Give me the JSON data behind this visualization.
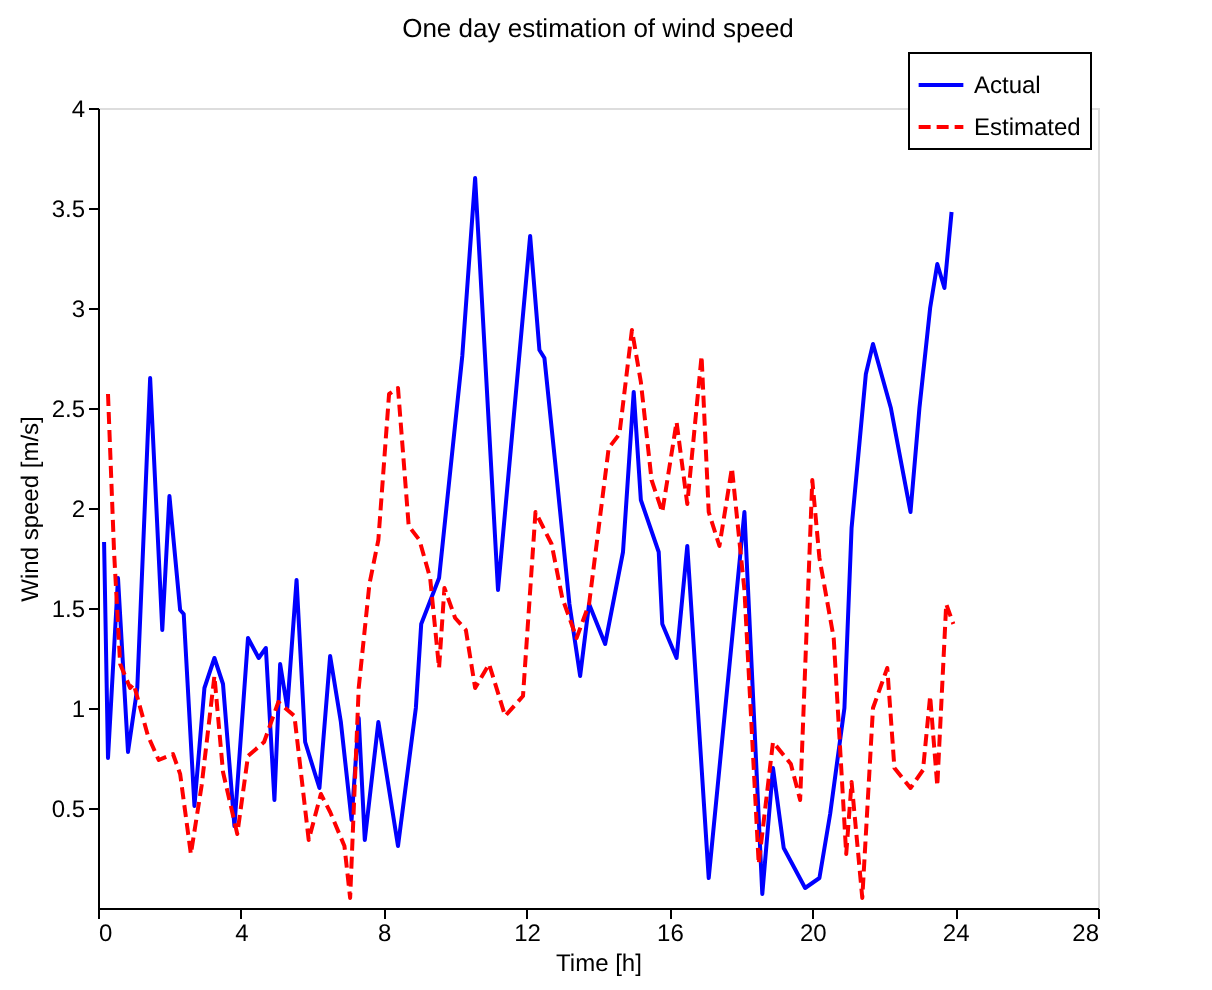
{
  "chart_data": {
    "type": "line",
    "title": "One day estimation of wind speed",
    "xlabel": "Time [h]",
    "ylabel": "Wind speed [m/s]",
    "xlim": [
      0,
      28
    ],
    "xticks": [
      0,
      4,
      8,
      12,
      16,
      20,
      24,
      28
    ],
    "ylim": [
      0,
      4
    ],
    "yticks": [
      0.5,
      1,
      1.5,
      2,
      2.5,
      3,
      3.5,
      4
    ],
    "grid": false,
    "legend": "top right",
    "marker": "none",
    "series": [
      {
        "name": "Actual",
        "color": "#0000ff",
        "line_style": "solid",
        "x": [
          0.17,
          0.28,
          0.56,
          0.84,
          1.1,
          1.46,
          1.8,
          2.0,
          2.3,
          2.4,
          2.7,
          2.98,
          3.26,
          3.5,
          3.82,
          4.2,
          4.5,
          4.7,
          4.94,
          5.1,
          5.3,
          5.56,
          5.8,
          6.2,
          6.5,
          6.8,
          7.1,
          7.3,
          7.47,
          7.85,
          8.4,
          8.9,
          9.05,
          9.55,
          10.2,
          10.56,
          11.2,
          12.1,
          12.36,
          12.5,
          12.8,
          13.2,
          13.5,
          13.75,
          14.2,
          14.7,
          15.0,
          15.2,
          15.7,
          15.8,
          16.2,
          16.5,
          17.1,
          18.1,
          18.6,
          18.9,
          19.2,
          19.5,
          19.8,
          20.2,
          20.5,
          20.9,
          21.1,
          21.5,
          21.7,
          22.2,
          22.75,
          23.0,
          23.3,
          23.5,
          23.7,
          23.9
        ],
        "values": [
          1.83,
          0.75,
          1.65,
          0.78,
          1.1,
          2.65,
          1.39,
          2.06,
          1.49,
          1.47,
          0.51,
          1.1,
          1.25,
          1.12,
          0.41,
          1.35,
          1.25,
          1.3,
          0.54,
          1.22,
          1.0,
          1.64,
          0.83,
          0.6,
          1.26,
          0.93,
          0.44,
          0.95,
          0.34,
          0.93,
          0.31,
          1.0,
          1.42,
          1.65,
          2.76,
          3.65,
          1.59,
          3.36,
          2.79,
          2.75,
          2.23,
          1.52,
          1.16,
          1.52,
          1.32,
          1.78,
          2.58,
          2.04,
          1.78,
          1.42,
          1.25,
          1.81,
          0.15,
          1.98,
          0.07,
          0.7,
          0.3,
          0.2,
          0.1,
          0.15,
          0.47,
          1.0,
          1.9,
          2.67,
          2.82,
          2.5,
          1.98,
          2.5,
          3.0,
          3.22,
          3.1,
          3.48
        ]
      },
      {
        "name": "Estimated",
        "color": "#ff0000",
        "line_style": "dashed",
        "x": [
          0.28,
          0.45,
          0.62,
          0.9,
          1.0,
          1.4,
          1.7,
          2.1,
          2.3,
          2.6,
          2.9,
          3.26,
          3.5,
          3.9,
          4.2,
          4.65,
          5.05,
          5.5,
          5.9,
          6.24,
          6.5,
          6.9,
          7.06,
          7.3,
          7.6,
          7.85,
          8.15,
          8.4,
          8.7,
          9.0,
          9.3,
          9.55,
          9.7,
          10.0,
          10.3,
          10.56,
          10.95,
          11.4,
          11.9,
          12.25,
          12.7,
          13.0,
          13.4,
          13.75,
          14.3,
          14.6,
          14.95,
          15.2,
          15.5,
          15.8,
          16.2,
          16.5,
          16.9,
          17.1,
          17.4,
          17.75,
          18.1,
          18.5,
          18.9,
          19.4,
          19.66,
          20.0,
          20.2,
          20.6,
          20.95,
          21.1,
          21.4,
          21.7,
          22.1,
          22.3,
          22.75,
          23.1,
          23.3,
          23.5,
          23.75,
          23.95
        ],
        "values": [
          2.57,
          1.78,
          1.22,
          1.1,
          1.12,
          0.86,
          0.74,
          0.77,
          0.67,
          0.27,
          0.61,
          1.16,
          0.68,
          0.37,
          0.76,
          0.83,
          1.03,
          0.96,
          0.34,
          0.57,
          0.48,
          0.31,
          0.05,
          1.1,
          1.62,
          1.84,
          2.57,
          2.6,
          1.91,
          1.84,
          1.65,
          1.2,
          1.6,
          1.45,
          1.39,
          1.1,
          1.22,
          0.96,
          1.06,
          1.98,
          1.82,
          1.55,
          1.35,
          1.52,
          2.3,
          2.37,
          2.89,
          2.63,
          2.14,
          1.98,
          2.43,
          2.02,
          2.76,
          1.98,
          1.81,
          2.2,
          1.59,
          0.22,
          0.83,
          0.72,
          0.54,
          2.14,
          1.75,
          1.35,
          0.27,
          0.63,
          0.05,
          1.0,
          1.2,
          0.7,
          0.6,
          0.69,
          1.06,
          0.61,
          1.52,
          1.42
        ]
      }
    ]
  }
}
